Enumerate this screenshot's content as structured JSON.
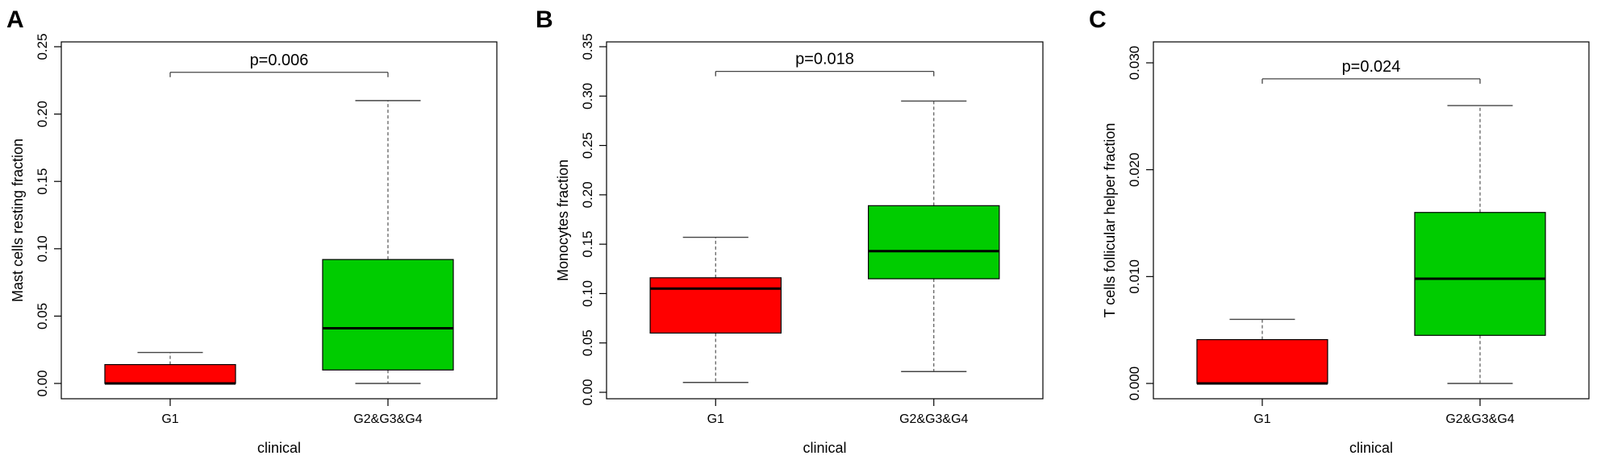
{
  "chart_data": [
    {
      "type": "box",
      "panel_label": "A",
      "ylabel": "Mast cells resting fraction",
      "xlabel": "clinical",
      "ylim": [
        0,
        0.25
      ],
      "yticks": [
        "0.00",
        "0.05",
        "0.10",
        "0.15",
        "0.20",
        "0.25"
      ],
      "categories": [
        "G1",
        "G2&G3&G4"
      ],
      "boxes": [
        {
          "category": "G1",
          "min": 0.0,
          "q1": 0.0,
          "median": 0.0,
          "q3": 0.014,
          "max": 0.023,
          "color": "#ff0000"
        },
        {
          "category": "G2&G3&G4",
          "min": 0.0,
          "q1": 0.01,
          "median": 0.041,
          "q3": 0.092,
          "max": 0.21,
          "color": "#00cc00"
        }
      ],
      "annotation": {
        "text": "p=0.006",
        "y": 0.231
      }
    },
    {
      "type": "box",
      "panel_label": "B",
      "ylabel": "Monocytes fraction",
      "xlabel": "clinical",
      "ylim": [
        0,
        0.35
      ],
      "yticks": [
        "0.00",
        "0.05",
        "0.10",
        "0.15",
        "0.20",
        "0.25",
        "0.30",
        "0.35"
      ],
      "categories": [
        "G1",
        "G2&G3&G4"
      ],
      "boxes": [
        {
          "category": "G1",
          "min": 0.01,
          "q1": 0.06,
          "median": 0.105,
          "q3": 0.116,
          "max": 0.157,
          "color": "#ff0000"
        },
        {
          "category": "G2&G3&G4",
          "min": 0.021,
          "q1": 0.115,
          "median": 0.143,
          "q3": 0.189,
          "max": 0.295,
          "color": "#00cc00"
        }
      ],
      "annotation": {
        "text": "p=0.018",
        "y": 0.325
      }
    },
    {
      "type": "box",
      "panel_label": "C",
      "ylabel": "T cells follicular helper fraction",
      "xlabel": "clinical",
      "ylim": [
        0,
        0.03
      ],
      "yticks": [
        "0.000",
        "0.010",
        "0.020",
        "0.030"
      ],
      "categories": [
        "G1",
        "G2&G3&G4"
      ],
      "boxes": [
        {
          "category": "G1",
          "min": 0.0,
          "q1": 0.0,
          "median": 0.0,
          "q3": 0.0041,
          "max": 0.006,
          "color": "#ff0000"
        },
        {
          "category": "G2&G3&G4",
          "min": 0.0,
          "q1": 0.0045,
          "median": 0.0098,
          "q3": 0.016,
          "max": 0.026,
          "color": "#00cc00"
        }
      ],
      "annotation": {
        "text": "p=0.024",
        "y": 0.0285
      }
    }
  ]
}
